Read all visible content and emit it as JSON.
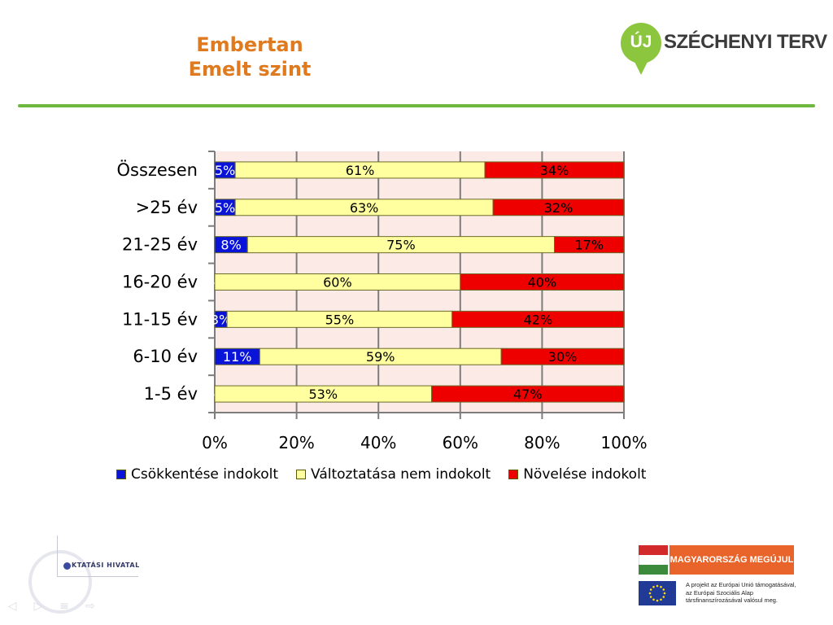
{
  "slide": {
    "title_line1": "Embertan",
    "title_line2": "Emelt szint"
  },
  "logos": {
    "top_right_badge": "ÚJ",
    "top_right_brand": "SZÉCHENYI TERV",
    "bottom_left": "KTATÁSI HIVATAL",
    "hungary_banner": "MAGYARORSZÁG MEGÚJUL",
    "eu_text_line1": "A projekt az Európai Unió támogatásával,",
    "eu_text_line2": "az Európai Szociális Alap",
    "eu_text_line3": "társfinanszírozásával valósul meg."
  },
  "nav_icons": [
    "arrow-left-icon",
    "arrow-right-icon",
    "menu-icon",
    "arrow-forward-icon"
  ],
  "colors": {
    "title": "#e07a1f",
    "accent_rule": "#6fb83f",
    "plot_bg": "#fbeae6",
    "series_blue": "#0a14d8",
    "series_yellow": "#ffffa0",
    "series_red": "#ee0000"
  },
  "chart_data": {
    "type": "bar",
    "orientation": "horizontal",
    "stacked": "percent",
    "categories": [
      "Összesen",
      ">25 év",
      "21-25 év",
      "16-20 év",
      "11-15 év",
      "6-10 év",
      "1-5 év"
    ],
    "series": [
      {
        "name": "Csökkentése indokolt",
        "color": "#0a14d8",
        "values": [
          5,
          5,
          8,
          0,
          3,
          11,
          0
        ],
        "labels": [
          "5%",
          "5%",
          "8%",
          "%",
          "3%",
          "11%",
          "%"
        ]
      },
      {
        "name": "Változtatása nem indokolt",
        "color": "#ffffa0",
        "values": [
          61,
          63,
          75,
          60,
          55,
          59,
          53
        ],
        "labels": [
          "61%",
          "63%",
          "75%",
          "60%",
          "55%",
          "59%",
          "53%"
        ]
      },
      {
        "name": "Növelése indokolt",
        "color": "#ee0000",
        "values": [
          34,
          32,
          17,
          40,
          42,
          30,
          47
        ],
        "labels": [
          "34%",
          "32%",
          "17%",
          "40%",
          "42%",
          "30%",
          "47%"
        ]
      }
    ],
    "x_ticks": [
      "0%",
      "20%",
      "40%",
      "60%",
      "80%",
      "100%"
    ],
    "xlim": [
      0,
      100
    ],
    "grid": true,
    "legend_position": "bottom"
  }
}
